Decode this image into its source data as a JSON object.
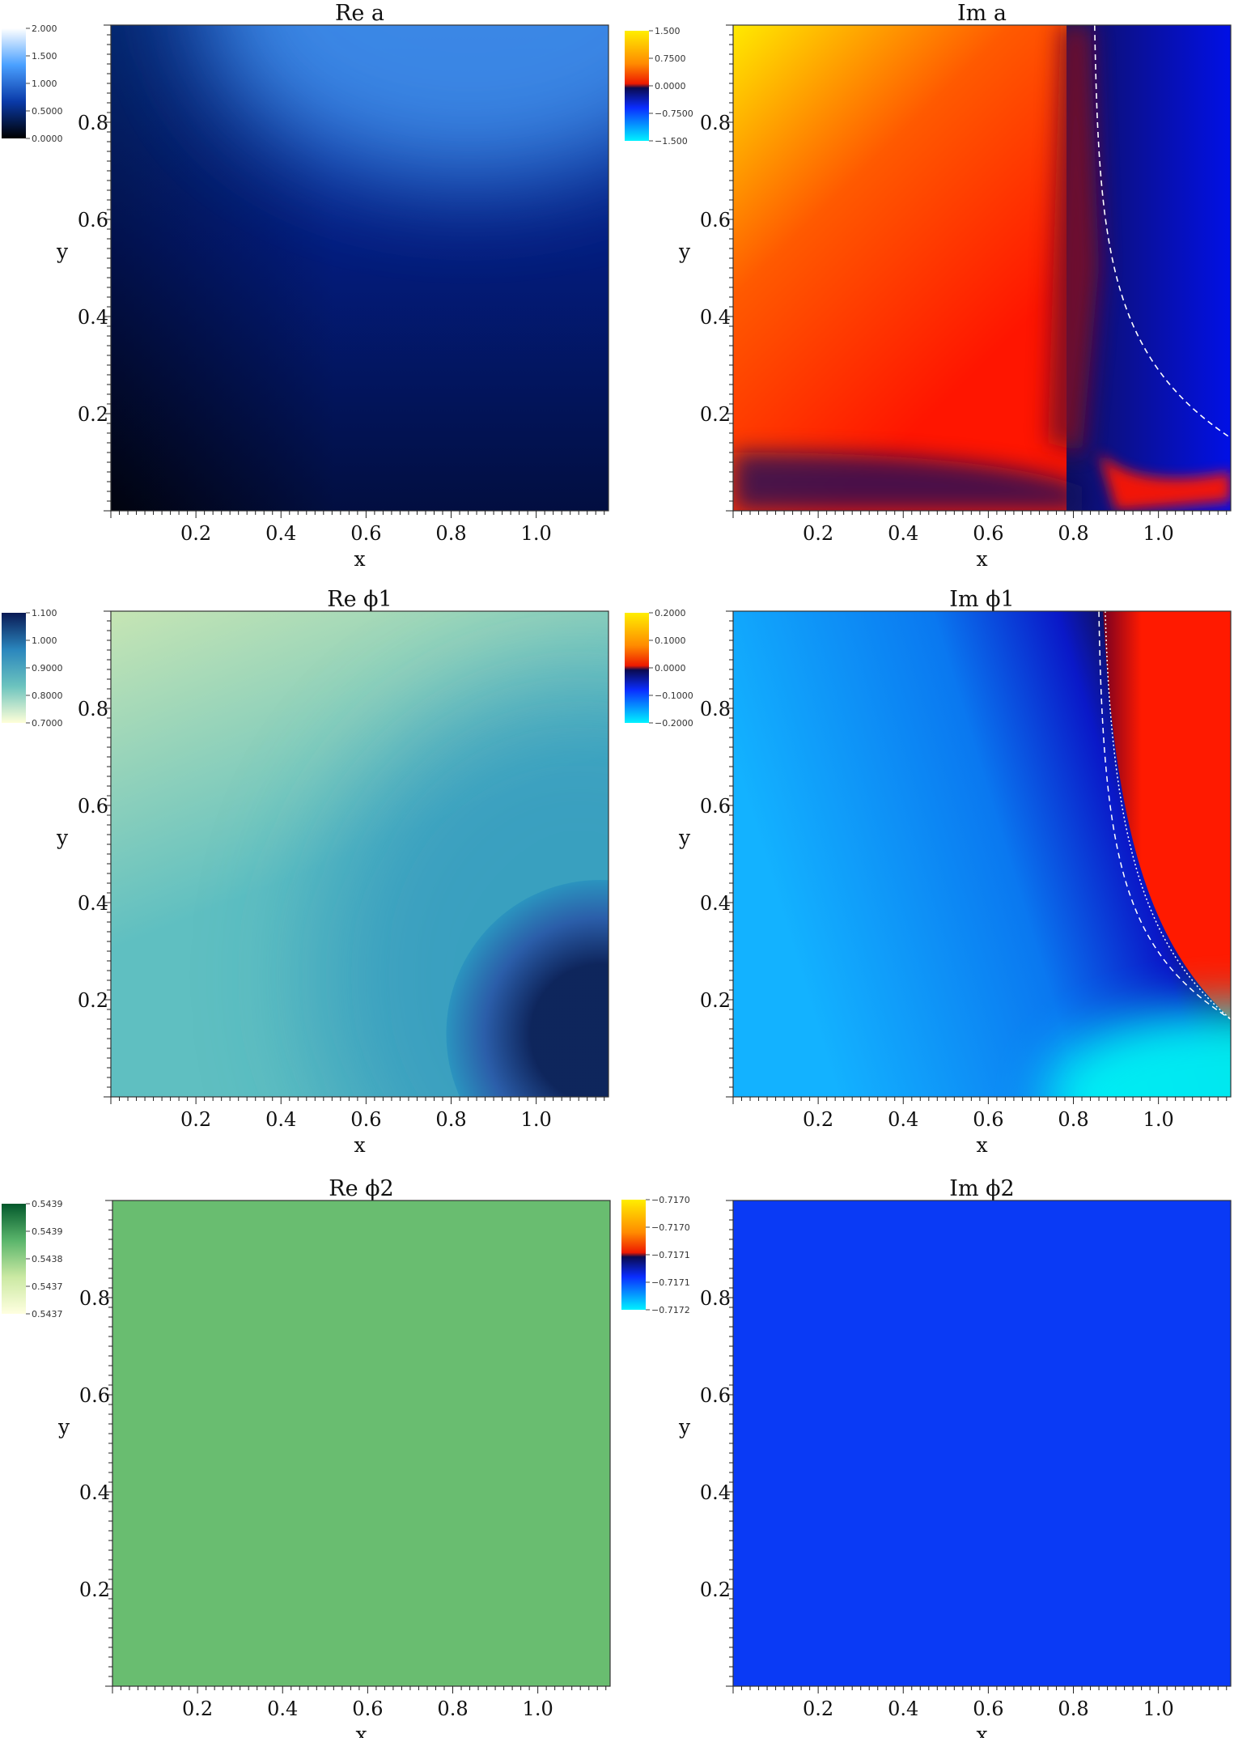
{
  "chart_data": [
    {
      "type": "heatmap",
      "title": "Re a",
      "xlabel": "x",
      "ylabel": "y",
      "xlim": [
        0,
        1.17
      ],
      "ylim": [
        0,
        1.0
      ],
      "xticks": [
        "0.2",
        "0.4",
        "0.6",
        "0.8",
        "1.0"
      ],
      "yticks": [
        "0.2",
        "0.4",
        "0.6",
        "0.8"
      ],
      "colorbar": {
        "labels": [
          "2.000",
          "1.500",
          "1.000",
          "0.5000",
          "0.0000"
        ],
        "colors": [
          "#ffffff",
          "#4aa0ff",
          "#0a3aa8",
          "#000000"
        ]
      },
      "field": {
        "kind": "re_a",
        "colors": [
          "#01030e",
          "#031c7e",
          "#0944bf",
          "#4596f2"
        ]
      }
    },
    {
      "type": "heatmap",
      "title": "Im a",
      "xlabel": "x",
      "ylabel": "y",
      "xlim": [
        0,
        1.17
      ],
      "ylim": [
        0,
        1.0
      ],
      "xticks": [
        "0.2",
        "0.4",
        "0.6",
        "0.8",
        "1.0"
      ],
      "yticks": [
        "0.2",
        "0.4",
        "0.6",
        "0.8"
      ],
      "colorbar": {
        "labels": [
          "1.500",
          "0.7500",
          "0.0000",
          "−0.7500",
          "−1.500"
        ],
        "colors": [
          "#ffee00",
          "#ff8a00",
          "#ee1a00",
          "#0a0a50",
          "#0a2dff",
          "#00f2ff"
        ]
      },
      "field": {
        "kind": "im_a",
        "colors": [
          "#ffea00",
          "#ff5a00",
          "#ff1500",
          "#7a0a25",
          "#101060",
          "#0010ee"
        ]
      }
    },
    {
      "type": "heatmap",
      "title": "Re ϕ1",
      "xlabel": "x",
      "ylabel": "y",
      "xlim": [
        0,
        1.17
      ],
      "ylim": [
        0,
        1.0
      ],
      "xticks": [
        "0.2",
        "0.4",
        "0.6",
        "0.8",
        "1.0"
      ],
      "yticks": [
        "0.2",
        "0.4",
        "0.6",
        "0.8"
      ],
      "colorbar": {
        "labels": [
          "1.100",
          "1.000",
          "0.9000",
          "0.8000",
          "0.7000"
        ],
        "colors": [
          "#0a1a55",
          "#2a86bd",
          "#6cc3be",
          "#ffffd8"
        ]
      },
      "field": {
        "kind": "re_phi1",
        "colors": [
          "#c6e5b4",
          "#5fbfc1",
          "#2a93bf",
          "#0c1f57"
        ]
      }
    },
    {
      "type": "heatmap",
      "title": "Im ϕ1",
      "xlabel": "x",
      "ylabel": "y",
      "xlim": [
        0,
        1.17
      ],
      "ylim": [
        0,
        1.0
      ],
      "xticks": [
        "0.2",
        "0.4",
        "0.6",
        "0.8",
        "1.0"
      ],
      "yticks": [
        "0.2",
        "0.4",
        "0.6",
        "0.8"
      ],
      "colorbar": {
        "labels": [
          "0.2000",
          "0.1000",
          "0.0000",
          "−0.1000",
          "−0.2000"
        ],
        "colors": [
          "#ffee00",
          "#ff8a00",
          "#ee1a00",
          "#0a0a50",
          "#0a2dff",
          "#00f2ff"
        ]
      },
      "field": {
        "kind": "im_phi1",
        "colors": [
          "#04f4f4",
          "#13b2ff",
          "#0a78f0",
          "#0a18c8",
          "#101055",
          "#7a0020",
          "#ff1a00"
        ]
      }
    },
    {
      "type": "heatmap",
      "title": "Re ϕ2",
      "xlabel": "x",
      "ylabel": "y",
      "xlim": [
        0,
        1.17
      ],
      "ylim": [
        0,
        1.0
      ],
      "xticks": [
        "0.2",
        "0.4",
        "0.6",
        "0.8",
        "1.0"
      ],
      "yticks": [
        "0.2",
        "0.4",
        "0.6",
        "0.8"
      ],
      "colorbar": {
        "labels": [
          "0.5439",
          "0.5439",
          "0.5438",
          "0.5437",
          "0.5437"
        ],
        "colors": [
          "#03582c",
          "#5ab56b",
          "#cbe9a3",
          "#ffffe0"
        ]
      },
      "field": {
        "kind": "uniform",
        "colors": [
          "#69bd70"
        ]
      }
    },
    {
      "type": "heatmap",
      "title": "Im ϕ2",
      "xlabel": "x",
      "ylabel": "y",
      "xlim": [
        0,
        1.17
      ],
      "ylim": [
        0,
        1.0
      ],
      "xticks": [
        "0.2",
        "0.4",
        "0.6",
        "0.8",
        "1.0"
      ],
      "yticks": [
        "0.2",
        "0.4",
        "0.6",
        "0.8"
      ],
      "colorbar": {
        "labels": [
          "−0.7170",
          "−0.7170",
          "−0.7171",
          "−0.7171",
          "−0.7172"
        ],
        "colors": [
          "#ffee00",
          "#ff8a00",
          "#ee1a00",
          "#0a0a50",
          "#0a2dff",
          "#00f2ff"
        ]
      },
      "field": {
        "kind": "uniform",
        "colors": [
          "#0a3af5"
        ]
      }
    }
  ]
}
